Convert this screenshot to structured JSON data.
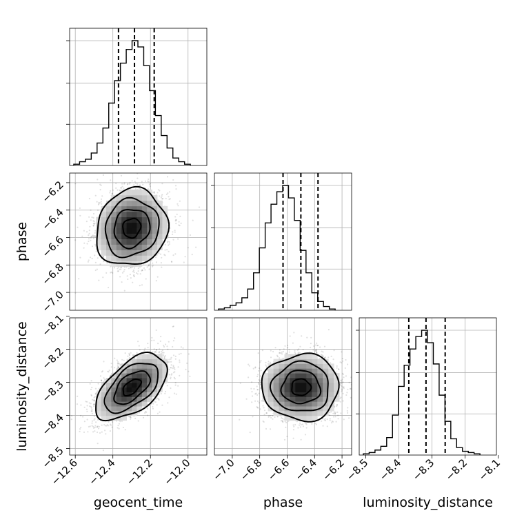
{
  "chart_data": {
    "type": "corner",
    "parameters": [
      {
        "name": "geocent_time",
        "label": "geocent_time",
        "range": [
          -12.63,
          -11.9
        ],
        "ticks": [
          -12.6,
          -12.4,
          -12.2,
          -12.0
        ],
        "tick_labels": [
          "−12.6",
          "−12.4",
          "−12.2",
          "−12.0"
        ],
        "hist_counts": [
          1,
          3,
          5,
          10,
          18,
          30,
          50,
          68,
          82,
          93,
          100,
          95,
          80,
          60,
          40,
          24,
          14,
          6,
          3,
          1
        ],
        "quantile_lines": [
          -12.37,
          -12.285,
          -12.18
        ]
      },
      {
        "name": "phase",
        "label": "phase",
        "range": [
          -7.13,
          -6.13
        ],
        "ticks": [
          -7.0,
          -6.8,
          -6.6,
          -6.4,
          -6.2
        ],
        "tick_labels": [
          "−7.0",
          "−6.8",
          "−6.6",
          "−6.4",
          "−6.2"
        ],
        "hist_counts": [
          1,
          2,
          4,
          6,
          10,
          17,
          30,
          50,
          70,
          85,
          95,
          100,
          90,
          72,
          48,
          30,
          14,
          7,
          3,
          1
        ],
        "quantile_lines": [
          -6.63,
          -6.5,
          -6.375
        ]
      },
      {
        "name": "luminosity_distance",
        "label": "luminosity_distance",
        "range": [
          -8.52,
          -8.105
        ],
        "ticks": [
          -8.5,
          -8.4,
          -8.3,
          -8.2,
          -8.1
        ],
        "tick_labels": [
          "−8.5",
          "−8.4",
          "−8.3",
          "−8.2",
          "−8.1"
        ],
        "hist_counts": [
          1,
          2,
          4,
          7,
          14,
          32,
          55,
          72,
          85,
          95,
          100,
          90,
          73,
          48,
          27,
          13,
          6,
          3,
          2,
          1
        ],
        "quantile_lines": [
          -8.37,
          -8.318,
          -8.26
        ]
      }
    ],
    "pairs": [
      {
        "x": "geocent_time",
        "y": "phase",
        "center": [
          -12.3,
          -6.53
        ],
        "sigma": [
          0.095,
          0.14
        ],
        "correlation": 0.1,
        "contour_levels": [
          "0.5σ",
          "1σ",
          "1.5σ",
          "2σ"
        ]
      },
      {
        "x": "geocent_time",
        "y": "luminosity_distance",
        "center": [
          -12.3,
          -8.315
        ],
        "sigma": [
          0.095,
          0.05
        ],
        "correlation": 0.55,
        "contour_levels": [
          "0.5σ",
          "1σ",
          "1.5σ",
          "2σ"
        ]
      },
      {
        "x": "phase",
        "y": "luminosity_distance",
        "center": [
          -6.5,
          -8.315
        ],
        "sigma": [
          0.14,
          0.05
        ],
        "correlation": 0.0,
        "contour_levels": [
          "0.5σ",
          "1σ",
          "1.5σ",
          "2σ"
        ]
      }
    ],
    "grid": true,
    "legend": "none"
  }
}
